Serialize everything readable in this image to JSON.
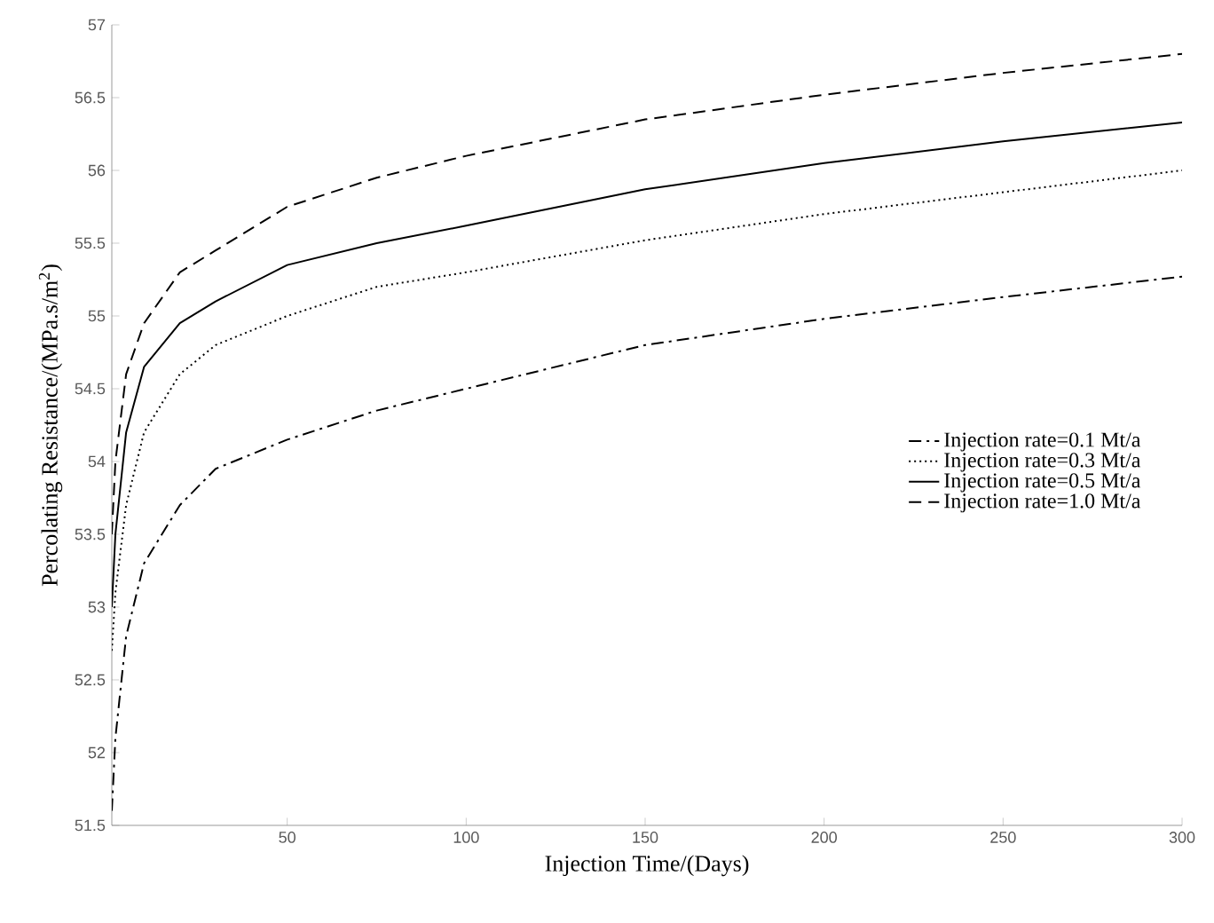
{
  "chart_data": {
    "type": "line",
    "xlabel": "Injection Time/(Days)",
    "ylabel": "Percolating Resistance/(MPa.s/m$^{2}$)",
    "x": [
      1,
      2,
      5,
      10,
      20,
      30,
      50,
      75,
      100,
      150,
      200,
      250,
      300
    ],
    "xlim": [
      1,
      300
    ],
    "xticks": [
      50,
      100,
      150,
      200,
      250,
      300
    ],
    "ylim": [
      51.5,
      57
    ],
    "yticks": [
      51.5,
      52,
      52.5,
      53,
      53.5,
      54,
      54.5,
      55,
      55.5,
      56,
      56.5,
      57
    ],
    "legend": "right",
    "series": [
      {
        "name": "Injection rate=0.1 Mt/a",
        "color": "#000000",
        "line_style": "dashdot",
        "values": [
          51.6,
          52.1,
          52.8,
          53.3,
          53.7,
          53.95,
          54.15,
          54.35,
          54.5,
          54.8,
          54.98,
          55.13,
          55.27
        ]
      },
      {
        "name": "Injection rate=0.3 Mt/a",
        "color": "#000000",
        "line_style": "dotted",
        "values": [
          52.7,
          53.1,
          53.7,
          54.2,
          54.6,
          54.8,
          55.0,
          55.2,
          55.3,
          55.52,
          55.7,
          55.85,
          56.0
        ]
      },
      {
        "name": "Injection rate=0.5 Mt/a",
        "color": "#000000",
        "line_style": "solid",
        "values": [
          53.0,
          53.5,
          54.2,
          54.65,
          54.95,
          55.1,
          55.35,
          55.5,
          55.62,
          55.87,
          56.05,
          56.2,
          56.33
        ]
      },
      {
        "name": "Injection rate=1.0 Mt/a",
        "color": "#000000",
        "line_style": "dashed",
        "values": [
          53.5,
          54.0,
          54.6,
          54.95,
          55.3,
          55.45,
          55.75,
          55.95,
          56.1,
          56.35,
          56.52,
          56.67,
          56.8
        ]
      }
    ]
  }
}
